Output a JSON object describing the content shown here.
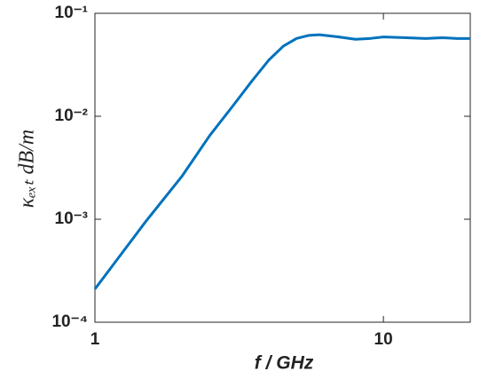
{
  "chart_data": {
    "type": "line",
    "x_label": "f / GHz",
    "y_label": "κₑₓₜ   dB/m",
    "x": [
      1,
      1.5,
      2,
      2.5,
      3,
      3.5,
      4,
      4.5,
      5,
      5.5,
      6,
      7,
      8,
      9,
      10,
      12,
      14,
      16,
      18,
      20
    ],
    "series": [
      {
        "color": "#0072bd",
        "values": [
          0.00021,
          0.00095,
          0.0026,
          0.0065,
          0.0125,
          0.022,
          0.035,
          0.048,
          0.057,
          0.061,
          0.062,
          0.059,
          0.056,
          0.057,
          0.059,
          0.058,
          0.057,
          0.058,
          0.057,
          0.057
        ]
      }
    ],
    "xlim": [
      1,
      20
    ],
    "ylim": [
      0.0001,
      0.1
    ],
    "xscale": "log",
    "yscale": "log",
    "xticks": [
      1,
      10
    ],
    "yticks": [
      {
        "value": 0.0001,
        "label": "10⁻⁴"
      },
      {
        "value": 0.001,
        "label": "10⁻³"
      },
      {
        "value": 0.01,
        "label": "10⁻²"
      },
      {
        "value": 0.1,
        "label": "10⁻¹"
      }
    ]
  }
}
